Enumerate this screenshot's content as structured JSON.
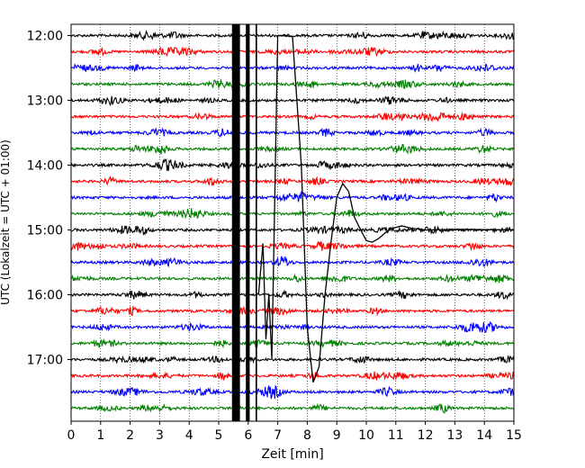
{
  "chart_data": {
    "type": "line",
    "title": "",
    "xlabel": "Zeit  [min]",
    "ylabel": "UTC (Lokalzeit = UTC + 01:00)",
    "xlim": [
      0,
      15
    ],
    "x_ticks": [
      0,
      1,
      2,
      3,
      4,
      5,
      6,
      7,
      8,
      9,
      10,
      11,
      12,
      13,
      14,
      15
    ],
    "x_tick_labels": [
      "0",
      "1",
      "2",
      "3",
      "4",
      "5",
      "6",
      "7",
      "8",
      "9",
      "10",
      "11",
      "12",
      "13",
      "14",
      "15"
    ],
    "y_tick_labels": [
      "12:00",
      "13:00",
      "14:00",
      "15:00",
      "16:00",
      "17:00"
    ],
    "trace_interval_minutes": 15,
    "trace_count": 24,
    "trace_colors": [
      "#000000",
      "#ff0000",
      "#0000ff",
      "#008000"
    ],
    "grid": "vertical dotted",
    "saturated_bands_min": [
      [
        5.45,
        5.72
      ],
      [
        5.92,
        6.05
      ],
      [
        6.25,
        6.3
      ]
    ],
    "event_trace": {
      "baseline_hour": "15:00",
      "color": "#000000",
      "points": [
        [
          6.35,
          16.0
        ],
        [
          6.5,
          15.2
        ],
        [
          6.6,
          16.7
        ],
        [
          6.7,
          16.0
        ],
        [
          6.8,
          17.0
        ],
        [
          6.9,
          14.5
        ],
        [
          7.0,
          12.0
        ],
        [
          7.1,
          12.0
        ],
        [
          7.5,
          12.0
        ],
        [
          7.8,
          14.0
        ],
        [
          8.0,
          16.5
        ],
        [
          8.2,
          17.35
        ],
        [
          8.4,
          17.1
        ],
        [
          8.6,
          16.0
        ],
        [
          8.8,
          15.2
        ],
        [
          9.0,
          14.5
        ],
        [
          9.2,
          14.28
        ],
        [
          9.4,
          14.4
        ],
        [
          9.6,
          14.8
        ],
        [
          9.8,
          15.0
        ],
        [
          10.0,
          15.15
        ],
        [
          10.2,
          15.2
        ],
        [
          10.4,
          15.15
        ],
        [
          10.6,
          15.05
        ],
        [
          10.8,
          14.98
        ],
        [
          11.0,
          14.95
        ],
        [
          11.2,
          14.95
        ],
        [
          11.5,
          14.97
        ],
        [
          12.0,
          15.0
        ],
        [
          13.0,
          15.0
        ],
        [
          15.0,
          15.0
        ]
      ]
    }
  }
}
